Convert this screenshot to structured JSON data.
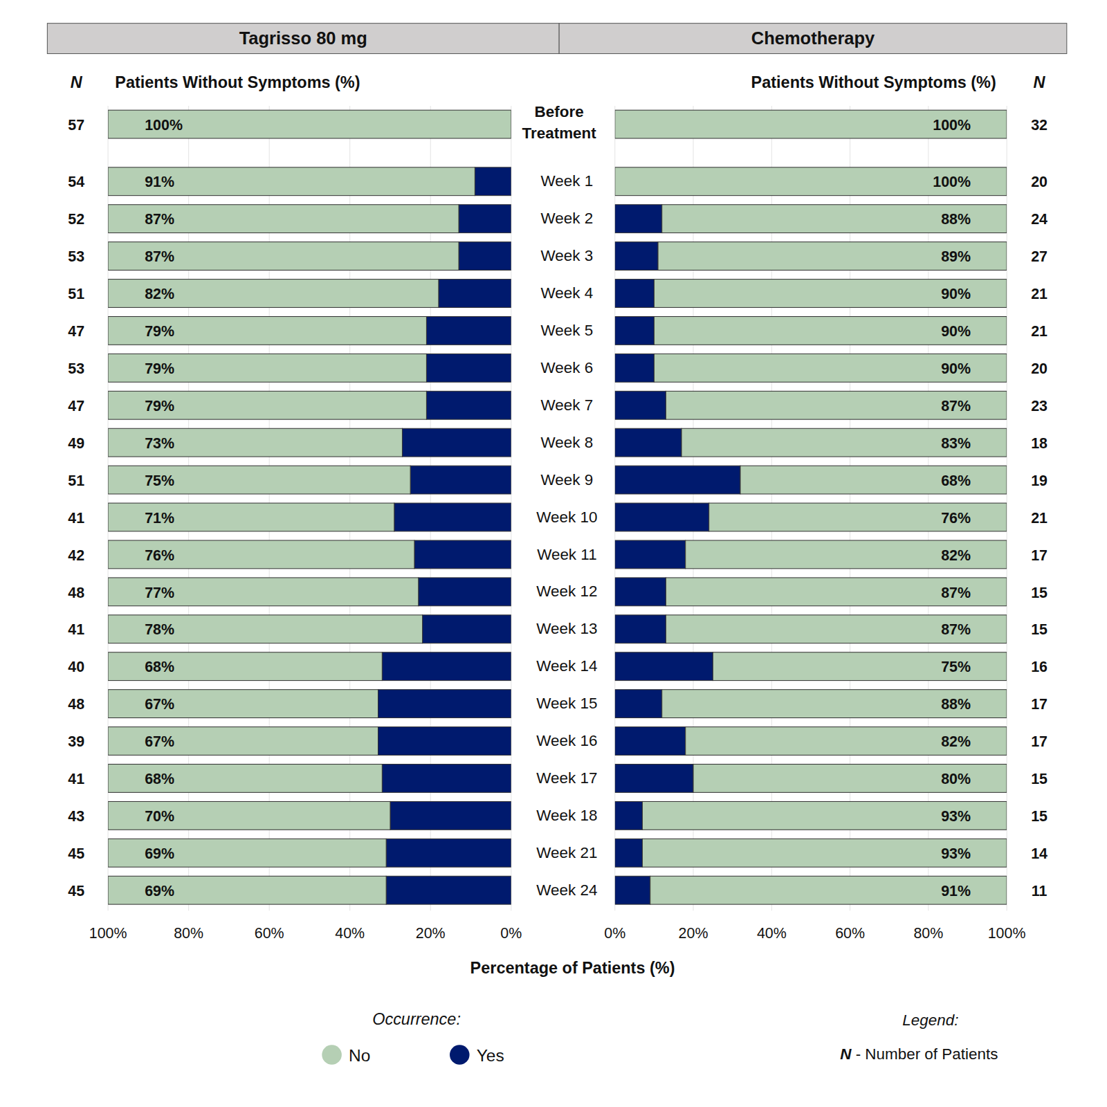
{
  "chart_data": [
    {
      "type": "bar",
      "orientation": "horizontal",
      "stacked": true,
      "data_labels": true,
      "grid": true,
      "title": "Tagrisso 80 mg",
      "subtitle": "Patients Without Symptoms (%)",
      "n_label": "N",
      "categories": [
        "Before Treatment",
        "Week 1",
        "Week 2",
        "Week 3",
        "Week 4",
        "Week 5",
        "Week 6",
        "Week 7",
        "Week 8",
        "Week 9",
        "Week 10",
        "Week 11",
        "Week 12",
        "Week 13",
        "Week 14",
        "Week 15",
        "Week 16",
        "Week 17",
        "Week 18",
        "Week 21",
        "Week 24"
      ],
      "n": [
        57,
        54,
        52,
        53,
        51,
        47,
        53,
        47,
        49,
        51,
        41,
        42,
        48,
        41,
        40,
        48,
        39,
        41,
        43,
        45,
        45
      ],
      "series": [
        {
          "name": "No",
          "color": "#b5cfb4",
          "values": [
            100,
            91,
            87,
            87,
            82,
            79,
            79,
            79,
            73,
            75,
            71,
            76,
            77,
            78,
            68,
            67,
            67,
            68,
            70,
            69,
            69
          ],
          "value_labels": [
            "100%",
            "91%",
            "87%",
            "87%",
            "82%",
            "79%",
            "79%",
            "79%",
            "73%",
            "75%",
            "71%",
            "76%",
            "77%",
            "78%",
            "68%",
            "67%",
            "67%",
            "68%",
            "70%",
            "69%",
            "69%"
          ]
        },
        {
          "name": "Yes",
          "color": "#001a6e",
          "values": [
            0,
            9,
            13,
            13,
            18,
            21,
            21,
            21,
            27,
            25,
            29,
            24,
            23,
            22,
            32,
            33,
            33,
            32,
            30,
            31,
            31
          ]
        }
      ],
      "xlim": [
        100,
        0
      ],
      "xticks": [
        {
          "value": 100,
          "label": "100%"
        },
        {
          "value": 80,
          "label": "80%"
        },
        {
          "value": 60,
          "label": "60%"
        },
        {
          "value": 40,
          "label": "40%"
        },
        {
          "value": 20,
          "label": "20%"
        },
        {
          "value": 0,
          "label": "0%"
        }
      ]
    },
    {
      "type": "bar",
      "orientation": "horizontal",
      "stacked": true,
      "data_labels": true,
      "grid": true,
      "title": "Chemotherapy",
      "subtitle": "Patients Without Symptoms (%)",
      "n_label": "N",
      "categories": [
        "Before Treatment",
        "Week 1",
        "Week 2",
        "Week 3",
        "Week 4",
        "Week 5",
        "Week 6",
        "Week 7",
        "Week 8",
        "Week 9",
        "Week 10",
        "Week 11",
        "Week 12",
        "Week 13",
        "Week 14",
        "Week 15",
        "Week 16",
        "Week 17",
        "Week 18",
        "Week 21",
        "Week 24"
      ],
      "n": [
        32,
        20,
        24,
        27,
        21,
        21,
        20,
        23,
        18,
        19,
        21,
        17,
        15,
        15,
        16,
        17,
        17,
        15,
        15,
        14,
        11
      ],
      "series": [
        {
          "name": "No",
          "color": "#b5cfb4",
          "values": [
            100,
            100,
            88,
            89,
            90,
            90,
            90,
            87,
            83,
            68,
            76,
            82,
            87,
            87,
            75,
            88,
            82,
            80,
            93,
            93,
            91
          ],
          "value_labels": [
            "100%",
            "100%",
            "88%",
            "89%",
            "90%",
            "90%",
            "90%",
            "87%",
            "83%",
            "68%",
            "76%",
            "82%",
            "87%",
            "87%",
            "75%",
            "88%",
            "82%",
            "80%",
            "93%",
            "93%",
            "91%"
          ]
        },
        {
          "name": "Yes",
          "color": "#001a6e",
          "values": [
            0,
            0,
            12,
            11,
            10,
            10,
            10,
            13,
            17,
            32,
            24,
            18,
            13,
            13,
            25,
            12,
            18,
            20,
            7,
            7,
            9
          ]
        }
      ],
      "xlim": [
        0,
        100
      ],
      "xticks": [
        {
          "value": 0,
          "label": "0%"
        },
        {
          "value": 20,
          "label": "20%"
        },
        {
          "value": 40,
          "label": "40%"
        },
        {
          "value": 60,
          "label": "60%"
        },
        {
          "value": 80,
          "label": "80%"
        },
        {
          "value": 100,
          "label": "100%"
        }
      ]
    }
  ],
  "x_label": "Percentage of Patients (%)",
  "legend_title": "Occurrence:",
  "key": {
    "title": "Legend:",
    "symbol": "N",
    "text": "- Number of Patients"
  }
}
